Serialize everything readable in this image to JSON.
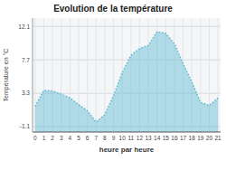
{
  "chart_data": {
    "type": "area",
    "title": "Evolution de la température",
    "xlabel": "heure par heure",
    "ylabel": "Température en °C",
    "x": [
      0,
      1,
      2,
      3,
      4,
      5,
      6,
      7,
      8,
      9,
      10,
      11,
      12,
      13,
      14,
      15,
      16,
      17,
      18,
      19,
      20,
      21
    ],
    "values": [
      1.6,
      3.7,
      3.6,
      3.2,
      2.7,
      1.8,
      1.0,
      -0.5,
      0.5,
      3.0,
      6.0,
      8.3,
      9.2,
      9.6,
      11.4,
      11.2,
      9.8,
      7.2,
      4.8,
      2.1,
      1.7,
      2.7
    ],
    "xlim": [
      -0.3,
      21.3
    ],
    "ylim": [
      -1.8,
      13.2
    ],
    "xticks": [
      0,
      1,
      2,
      3,
      4,
      5,
      6,
      7,
      8,
      9,
      10,
      11,
      12,
      13,
      14,
      15,
      16,
      17,
      18,
      19,
      20,
      21
    ],
    "yticks": [
      -1.1,
      3.3,
      7.7,
      12.1
    ],
    "grid": true,
    "color": "#5ab8d0",
    "line_style": "dotted"
  }
}
